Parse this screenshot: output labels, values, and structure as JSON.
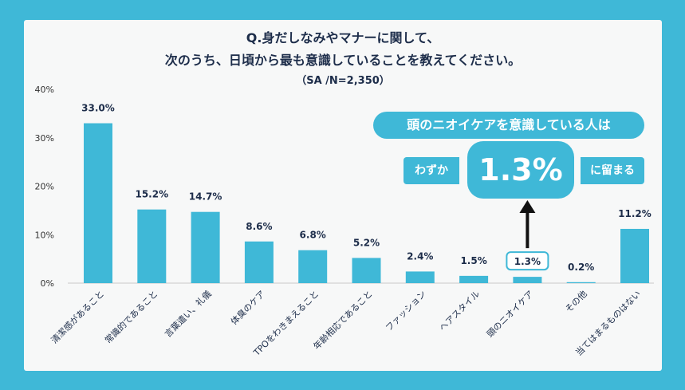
{
  "title": {
    "line1": "Q.身だしなみやマナーに関して、",
    "line2": "次のうち、日頃から最も意識していることを教えてください。",
    "note": "（SA /N=2,350）"
  },
  "callout": {
    "headline": "頭のニオイケアを意識している人は",
    "prefix": "わずか",
    "value": "1.3%",
    "suffix": "に留まる"
  },
  "chart_data": {
    "type": "bar",
    "title": "Q.身だしなみやマナーに関して、次のうち、日頃から最も意識していることを教えてください。",
    "ylim": [
      0,
      40
    ],
    "yticks": [
      "0%",
      "10%",
      "20%",
      "30%",
      "40%"
    ],
    "categories": [
      "清潔感があること",
      "常識的であること",
      "言葉遣い、礼儀",
      "体臭のケア",
      "TPOをわきまえること",
      "年齢相応であること",
      "ファッション",
      "ヘアスタイル",
      "頭のニオイケア",
      "その他",
      "当てはまるものはない"
    ],
    "values": [
      33.0,
      15.2,
      14.7,
      8.6,
      6.8,
      5.2,
      2.4,
      1.5,
      1.3,
      0.2,
      11.2
    ],
    "labels": [
      "33.0%",
      "15.2%",
      "14.7%",
      "8.6%",
      "6.8%",
      "5.2%",
      "2.4%",
      "1.5%",
      "1.3%",
      "0.2%",
      "11.2%"
    ],
    "highlight_index": 8,
    "bar_color": "#3fb8d7"
  },
  "colors": {
    "background": "#3fb8d7",
    "card": "#f7f8f8",
    "text": "#1d2d4a",
    "bar": "#3fb8d7"
  }
}
